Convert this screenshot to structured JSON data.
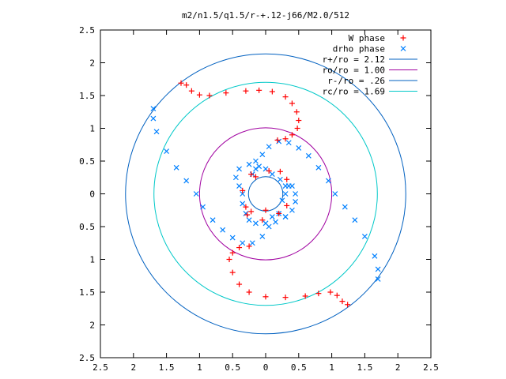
{
  "chart_data": {
    "type": "scatter",
    "title": "m2/n1.5/q1.5/r-+.12-j66/M2.0/512",
    "xlabel": "",
    "ylabel": "",
    "xlim": [
      -2.5,
      2.5
    ],
    "ylim": [
      -2.5,
      2.5
    ],
    "xticks": [
      -2.5,
      -2,
      -1.5,
      -1,
      -0.5,
      0,
      0.5,
      1,
      1.5,
      2,
      2.5
    ],
    "yticks": [
      -2.5,
      -2,
      -1.5,
      -1,
      -0.5,
      0,
      0.5,
      1,
      1.5,
      2,
      2.5
    ],
    "xtick_labels": [
      "2.5",
      "2",
      "1.5",
      "1",
      "0.5",
      "0",
      "0.5",
      "1",
      "1.5",
      "2",
      "2.5"
    ],
    "ytick_labels": [
      "2.5",
      "2",
      "1.5",
      "1",
      "0.5",
      "0",
      "0.5",
      "1",
      "1.5",
      "2",
      "2.5"
    ],
    "grid": false,
    "legend_position": "top-right",
    "series": [
      {
        "name": "W phase",
        "marker": "+",
        "color": "#ff0000",
        "points": [
          [
            -1.28,
            1.69
          ],
          [
            -1.2,
            1.66
          ],
          [
            -1.12,
            1.57
          ],
          [
            -1.0,
            1.51
          ],
          [
            -0.85,
            1.5
          ],
          [
            -0.6,
            1.54
          ],
          [
            -0.3,
            1.57
          ],
          [
            -0.1,
            1.58
          ],
          [
            0.1,
            1.56
          ],
          [
            0.3,
            1.48
          ],
          [
            0.4,
            1.38
          ],
          [
            0.47,
            1.25
          ],
          [
            0.5,
            1.12
          ],
          [
            0.48,
            1.0
          ],
          [
            0.4,
            0.9
          ],
          [
            0.3,
            0.84
          ],
          [
            0.18,
            0.82
          ],
          [
            1.24,
            -1.69
          ],
          [
            1.16,
            -1.64
          ],
          [
            1.08,
            -1.55
          ],
          [
            0.98,
            -1.5
          ],
          [
            0.8,
            -1.52
          ],
          [
            0.6,
            -1.56
          ],
          [
            0.3,
            -1.58
          ],
          [
            0.0,
            -1.57
          ],
          [
            -0.25,
            -1.5
          ],
          [
            -0.4,
            -1.38
          ],
          [
            -0.5,
            -1.2
          ],
          [
            -0.55,
            -1.0
          ],
          [
            -0.5,
            -0.9
          ],
          [
            -0.4,
            -0.82
          ],
          [
            -0.25,
            -0.8
          ],
          [
            -0.22,
            0.3
          ],
          [
            -0.15,
            0.26
          ],
          [
            0.05,
            0.35
          ],
          [
            0.22,
            0.34
          ],
          [
            0.32,
            0.22
          ],
          [
            -0.35,
            0.05
          ],
          [
            -0.3,
            -0.2
          ],
          [
            -0.22,
            -0.27
          ],
          [
            -0.05,
            -0.4
          ],
          [
            0.2,
            -0.3
          ],
          [
            0.32,
            -0.18
          ],
          [
            -0.28,
            -0.32
          ],
          [
            0.0,
            -0.25
          ]
        ]
      },
      {
        "name": "drho phase",
        "marker": "x",
        "color": "#0080ff",
        "points": [
          [
            -1.7,
            1.3
          ],
          [
            -1.7,
            1.15
          ],
          [
            -1.65,
            0.95
          ],
          [
            -1.5,
            0.65
          ],
          [
            -1.35,
            0.4
          ],
          [
            -1.2,
            0.2
          ],
          [
            -1.05,
            0.0
          ],
          [
            -0.95,
            -0.2
          ],
          [
            -0.8,
            -0.4
          ],
          [
            -0.65,
            -0.55
          ],
          [
            -0.5,
            -0.67
          ],
          [
            -0.35,
            -0.75
          ],
          [
            -0.2,
            -0.75
          ],
          [
            -0.05,
            -0.65
          ],
          [
            0.05,
            -0.5
          ],
          [
            0.15,
            -0.43
          ],
          [
            0.3,
            -0.35
          ],
          [
            0.4,
            -0.25
          ],
          [
            0.45,
            -0.12
          ],
          [
            0.45,
            0.0
          ],
          [
            0.4,
            0.12
          ],
          [
            0.35,
            0.12
          ],
          [
            1.7,
            -1.3
          ],
          [
            1.7,
            -1.15
          ],
          [
            1.65,
            -0.95
          ],
          [
            1.5,
            -0.65
          ],
          [
            1.35,
            -0.4
          ],
          [
            1.2,
            -0.2
          ],
          [
            1.05,
            0.0
          ],
          [
            0.95,
            0.2
          ],
          [
            0.8,
            0.4
          ],
          [
            0.65,
            0.58
          ],
          [
            0.5,
            0.7
          ],
          [
            0.35,
            0.78
          ],
          [
            0.2,
            0.8
          ],
          [
            0.05,
            0.72
          ],
          [
            -0.05,
            0.6
          ],
          [
            -0.15,
            0.5
          ],
          [
            -0.25,
            0.45
          ],
          [
            -0.4,
            0.38
          ],
          [
            -0.45,
            0.25
          ],
          [
            -0.4,
            0.12
          ],
          [
            -0.35,
            0.0
          ],
          [
            -0.2,
            0.3
          ],
          [
            -0.15,
            0.38
          ],
          [
            -0.1,
            0.42
          ],
          [
            0.0,
            0.38
          ],
          [
            0.1,
            0.3
          ],
          [
            0.22,
            0.22
          ],
          [
            0.3,
            0.12
          ],
          [
            0.3,
            0.0
          ],
          [
            0.25,
            -0.1
          ],
          [
            0.2,
            -0.3
          ],
          [
            0.3,
            -0.35
          ],
          [
            -0.3,
            -0.3
          ],
          [
            -0.25,
            -0.4
          ],
          [
            -0.15,
            -0.45
          ],
          [
            0.0,
            -0.45
          ],
          [
            0.1,
            -0.35
          ],
          [
            -0.35,
            -0.15
          ]
        ]
      }
    ],
    "circles": [
      {
        "name": "r+/ro = 2.12",
        "radius": 2.12,
        "color": "#0060c0"
      },
      {
        "name": "ro/ro = 1.00",
        "radius": 1.0,
        "color": "#a000a0"
      },
      {
        "name": "r-/ro = .26",
        "radius": 0.26,
        "color": "#0060c0"
      },
      {
        "name": "rc/ro = 1.69",
        "radius": 1.69,
        "color": "#00c8c8"
      }
    ]
  }
}
